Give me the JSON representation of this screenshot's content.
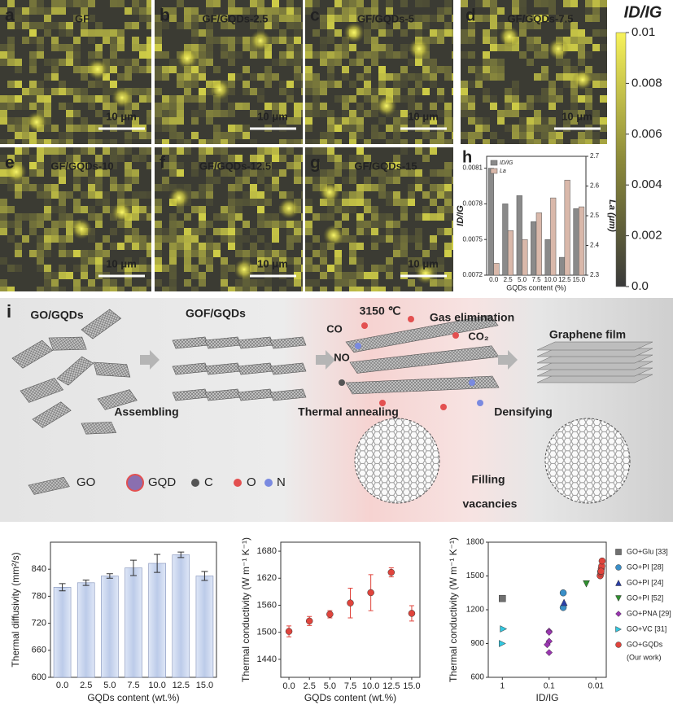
{
  "maps": [
    {
      "letter": "a",
      "label": "GF",
      "scale_bar": "10 μm"
    },
    {
      "letter": "b",
      "label": "GF/GQDs-2.5",
      "scale_bar": "10 μm"
    },
    {
      "letter": "c",
      "label": "GF/GQDs-5",
      "scale_bar": "10 μm"
    },
    {
      "letter": "d",
      "label": "GF/GQDs-7.5",
      "scale_bar": "10 μm"
    },
    {
      "letter": "e",
      "label": "GF/GQDs-10",
      "scale_bar": "10 μm"
    },
    {
      "letter": "f",
      "label": "GF/GQDs-12.5",
      "scale_bar": "10 μm"
    },
    {
      "letter": "g",
      "label": "GF/GQDs-15",
      "scale_bar": "10 μm"
    }
  ],
  "colorbar": {
    "title": "ID/IG",
    "lim": [
      0,
      0.01
    ],
    "ticks": [
      {
        "value": 0,
        "label": "0.0"
      },
      0.002,
      0.004,
      0.006,
      0.008,
      0.01
    ]
  },
  "schematic": {
    "letter": "i",
    "stages": [
      "GO/GQDs",
      "GOF/GQDs",
      "Graphene film"
    ],
    "temperature": "3150 ℃",
    "gas_elimination": "Gas elimination",
    "gases": [
      "CO",
      "CO₂",
      "NO"
    ],
    "steps": [
      "Assembling",
      "Thermal annealing",
      "Densifying"
    ],
    "filling": [
      "Filling",
      "vacancies"
    ],
    "legend": [
      "GO",
      "GQD",
      "C",
      "O",
      "N"
    ]
  },
  "chart_data": [
    {
      "type": "bar",
      "letter": "h",
      "categories": [
        "0.0",
        "2.5",
        "5.0",
        "7.5",
        "10.0",
        "12.5",
        "15.0"
      ],
      "series": [
        {
          "name": "ID/IG",
          "color": "#8a8a8a",
          "values": [
            0.0081,
            0.0078,
            0.00787,
            0.00765,
            0.0075,
            0.00735,
            0.00776
          ]
        },
        {
          "name": "La",
          "color": "#d9b8aa",
          "axis": "y2",
          "values": [
            2.34,
            2.45,
            2.42,
            2.51,
            2.56,
            2.62,
            2.53
          ]
        }
      ],
      "ylim": [
        0.0072,
        0.0082
      ],
      "yticks": [
        0.0072,
        0.0075,
        0.0078,
        0.0081
      ],
      "y2lim": [
        2.3,
        2.7
      ],
      "y2ticks": [
        2.3,
        2.4,
        2.5,
        2.6,
        2.7
      ],
      "xlabel": "GQDs content (%)",
      "ylabel": "ID/IG",
      "y2label": "La (μm)"
    },
    {
      "type": "bar",
      "categories": [
        "0.0",
        "2.5",
        "5.0",
        "7.5",
        "10.0",
        "12.5",
        "15.0"
      ],
      "values": [
        800,
        810,
        825,
        843,
        853,
        872,
        825
      ],
      "errors": [
        8,
        6,
        5,
        17,
        20,
        6,
        10
      ],
      "color": "#bccbe9",
      "ylim": [
        600,
        900
      ],
      "yticks": [
        600,
        660,
        720,
        780,
        840
      ],
      "xlabel": "GQDs content (wt.%)",
      "ylabel": "Thermal diffusivity (mm²/s)"
    },
    {
      "type": "scatter",
      "x": [
        0,
        2.5,
        5,
        7.5,
        10,
        12.5,
        15
      ],
      "values": [
        1502,
        1525,
        1540,
        1565,
        1588,
        1633,
        1542
      ],
      "errors": [
        12,
        10,
        8,
        33,
        40,
        10,
        17
      ],
      "color": "#e0443c",
      "xlim": [
        -1,
        16
      ],
      "xticks": [
        {
          "value": 0,
          "label": "0.0"
        },
        2.5,
        {
          "value": 5,
          "label": "5.0"
        },
        7.5,
        {
          "value": 10,
          "label": "10.0"
        },
        12.5,
        {
          "value": 15,
          "label": "15.0"
        }
      ],
      "ylim": [
        1400,
        1700
      ],
      "yticks": [
        1440,
        1500,
        1560,
        1620,
        1680
      ],
      "xlabel": "GQDs content (wt.%)",
      "ylabel": "Thermal conductivity (W m⁻¹ K⁻¹)"
    },
    {
      "type": "scatter",
      "xscale": "log",
      "xlim": [
        2,
        0.006
      ],
      "xticks": [
        1,
        0.1,
        0.01
      ],
      "ylim": [
        600,
        1800
      ],
      "yticks": [
        600,
        900,
        1200,
        1500,
        1800
      ],
      "xlabel": "ID/IG",
      "ylabel": "Thermal conductivity (W m⁻¹ K⁻¹)",
      "series": [
        {
          "name": "GO+Glu [33]",
          "color": "#707070",
          "marker": "square",
          "x": [
            1
          ],
          "values": [
            1300
          ]
        },
        {
          "name": "GO+PI [28]",
          "color": "#3a8fc8",
          "marker": "circle",
          "x": [
            0.05,
            0.05
          ],
          "values": [
            1350,
            1220
          ]
        },
        {
          "name": "GO+PI [24]",
          "color": "#2a3fa8",
          "marker": "triangle",
          "x": [
            0.048
          ],
          "values": [
            1265
          ]
        },
        {
          "name": "GO+PI [52]",
          "color": "#2f8f2f",
          "marker": "triangle-down",
          "x": [
            0.016
          ],
          "values": [
            1430
          ]
        },
        {
          "name": "GO+PNA [29]",
          "color": "#9a36b0",
          "marker": "diamond",
          "x": [
            0.1,
            0.1,
            0.1,
            0.1,
            0.11
          ],
          "values": [
            1010,
            1000,
            920,
            820,
            890
          ]
        },
        {
          "name": "GO+VC [31]",
          "color": "#33c8e0",
          "marker": "triangle-right",
          "x": [
            0.95,
            1
          ],
          "values": [
            1030,
            900
          ]
        },
        {
          "name": "GO+GQDs",
          "note": "(Our work)",
          "color": "#e0443c",
          "marker": "circle",
          "x": [
            0.0081,
            0.0078,
            0.00787,
            0.00765,
            0.0075,
            0.00735,
            0.00776
          ],
          "values": [
            1502,
            1525,
            1540,
            1565,
            1588,
            1633,
            1542
          ]
        }
      ]
    }
  ]
}
